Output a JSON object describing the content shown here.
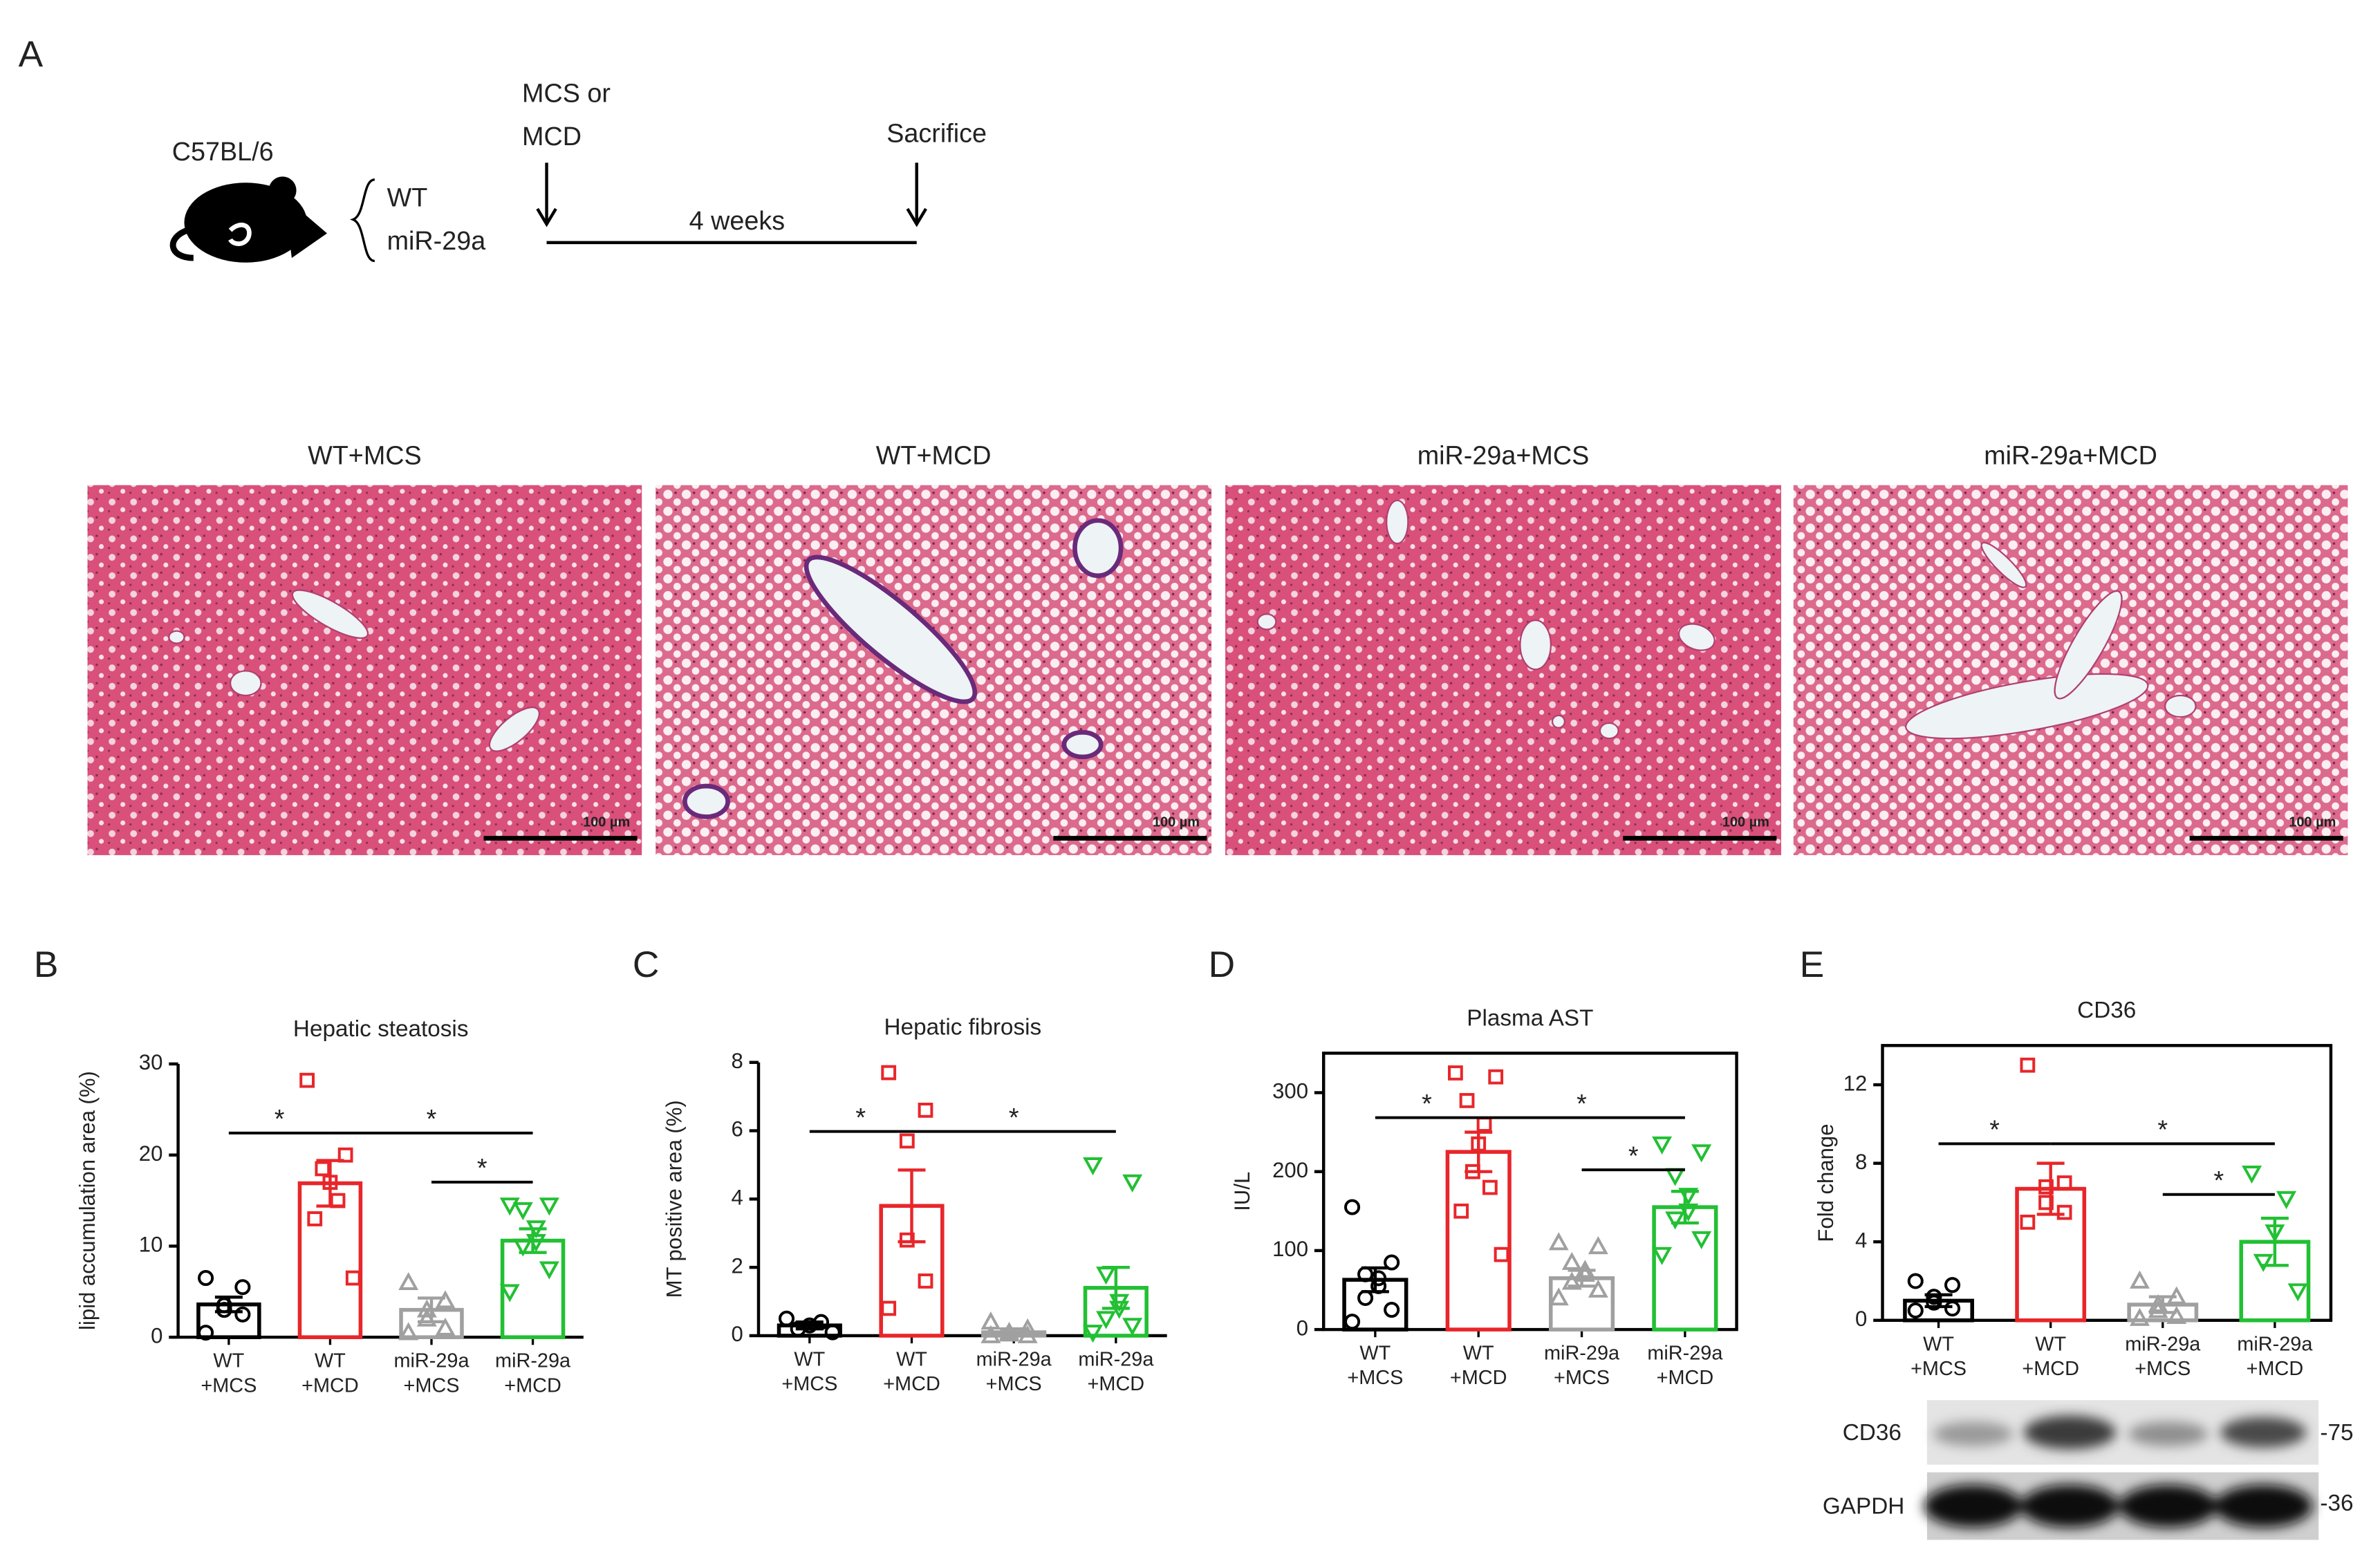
{
  "schematic": {
    "panel_label": "A",
    "strain": "C57BL/6",
    "genotypes": [
      "WT",
      "miR-29a"
    ],
    "treatment": [
      "MCS or",
      "MCD"
    ],
    "duration": "4 weeks",
    "endpoint": "Sacrifice"
  },
  "histology": {
    "panels": [
      {
        "title": "WT+MCS",
        "scale_bar": "100 µm"
      },
      {
        "title": "WT+MCD",
        "scale_bar": "100 µm"
      },
      {
        "title": "miR-29a+MCS",
        "scale_bar": "100 µm"
      },
      {
        "title": "miR-29a+MCD",
        "scale_bar": "100 µm"
      }
    ]
  },
  "chart_data": [
    {
      "type": "bar",
      "panel_label": "B",
      "title": "Hepatic steatosis",
      "y_label": "lipid accumulation area (%)",
      "categories": [
        "WT +MCS",
        "WT +MCD",
        "miR-29a +MCS",
        "miR-29a +MCD"
      ],
      "values": [
        3.6,
        16.9,
        3.0,
        10.6
      ],
      "errors": [
        0.8,
        2.5,
        1.3,
        1.3
      ],
      "points": [
        [
          6.5,
          5.5,
          3.5,
          3.0,
          2.5,
          0.5
        ],
        [
          28.2,
          20.0,
          18.5,
          17.0,
          15.0,
          13.0,
          6.5
        ],
        [
          6.0,
          4.0,
          3.0,
          2.0,
          1.0,
          0.5
        ],
        [
          14.5,
          14.5,
          14.0,
          12.0,
          10.5,
          10.0,
          7.5,
          5.0
        ]
      ],
      "colors": [
        "#000000",
        "#e8262a",
        "#a0a0a0",
        "#22c033"
      ],
      "markers": [
        "circle",
        "square",
        "triangle-up",
        "triangle-down"
      ],
      "ylim": [
        0,
        30
      ],
      "yticks": [
        0,
        10,
        20,
        30
      ],
      "frame": false,
      "significance": [
        "*",
        "*",
        "*"
      ]
    },
    {
      "type": "bar",
      "panel_label": "C",
      "title": "Hepatic fibrosis",
      "y_label": "MT positive area (%)",
      "categories": [
        "WT +MCS",
        "WT +MCD",
        "miR-29a +MCS",
        "miR-29a +MCD"
      ],
      "values": [
        0.3,
        3.8,
        0.1,
        1.4
      ],
      "errors": [
        0.1,
        1.05,
        0.1,
        0.6
      ],
      "points": [
        [
          0.5,
          0.4,
          0.3,
          0.2,
          0.1
        ],
        [
          7.7,
          6.6,
          5.7,
          2.8,
          1.6,
          0.8
        ],
        [
          0.4,
          0.2,
          0.1,
          0.05,
          0.0,
          0.0
        ],
        [
          5.0,
          4.5,
          1.8,
          1.0,
          0.8,
          0.5,
          0.3,
          0.1
        ]
      ],
      "colors": [
        "#000000",
        "#e8262a",
        "#a0a0a0",
        "#22c033"
      ],
      "markers": [
        "circle",
        "square",
        "triangle-up",
        "triangle-down"
      ],
      "ylim": [
        0,
        8
      ],
      "yticks": [
        0,
        2,
        4,
        6,
        8
      ],
      "frame": false,
      "significance": [
        "*",
        "*"
      ]
    },
    {
      "type": "bar",
      "panel_label": "D",
      "title": "Plasma AST",
      "y_label": "IU/L",
      "categories": [
        "WT +MCS",
        "WT +MCD",
        "miR-29a +MCS",
        "miR-29a +MCD"
      ],
      "values": [
        63,
        225,
        65,
        155
      ],
      "errors": [
        15,
        25,
        10,
        20
      ],
      "points": [
        [
          155,
          85,
          70,
          65,
          55,
          40,
          25,
          10
        ],
        [
          325,
          320,
          290,
          260,
          235,
          200,
          180,
          150,
          95
        ],
        [
          110,
          105,
          85,
          75,
          70,
          60,
          50,
          40
        ],
        [
          235,
          225,
          195,
          170,
          150,
          140,
          115,
          95
        ]
      ],
      "colors": [
        "#000000",
        "#e8262a",
        "#a0a0a0",
        "#22c033"
      ],
      "markers": [
        "circle",
        "square",
        "triangle-up",
        "triangle-down"
      ],
      "ylim": [
        0,
        350
      ],
      "yticks": [
        0,
        100,
        200,
        300
      ],
      "frame": true,
      "significance": [
        "*",
        "*",
        "*"
      ]
    },
    {
      "type": "bar",
      "panel_label": "E",
      "title": "CD36",
      "y_label": "Fold change",
      "categories": [
        "WT +MCS",
        "WT +MCD",
        "miR-29a +MCS",
        "miR-29a +MCD"
      ],
      "values": [
        1.0,
        6.7,
        0.8,
        4.0
      ],
      "errors": [
        0.3,
        1.3,
        0.4,
        1.2
      ],
      "points": [
        [
          2.0,
          1.8,
          1.2,
          0.9,
          0.6,
          0.5
        ],
        [
          13.0,
          7.0,
          6.8,
          6.0,
          5.5,
          5.0
        ],
        [
          2.0,
          1.2,
          0.8,
          0.5,
          0.2,
          0.1
        ],
        [
          7.5,
          6.2,
          4.5,
          3.0,
          1.5
        ]
      ],
      "colors": [
        "#000000",
        "#e8262a",
        "#a0a0a0",
        "#22c033"
      ],
      "markers": [
        "circle",
        "square",
        "triangle-up",
        "triangle-down"
      ],
      "ylim": [
        0,
        14
      ],
      "yticks": [
        0,
        4,
        8,
        12
      ],
      "frame": true,
      "significance": [
        "*",
        "*",
        "*"
      ]
    }
  ],
  "blot": {
    "rows": [
      {
        "label": "CD36",
        "marker": "-75"
      },
      {
        "label": "GAPDH",
        "marker": "-36"
      }
    ]
  }
}
